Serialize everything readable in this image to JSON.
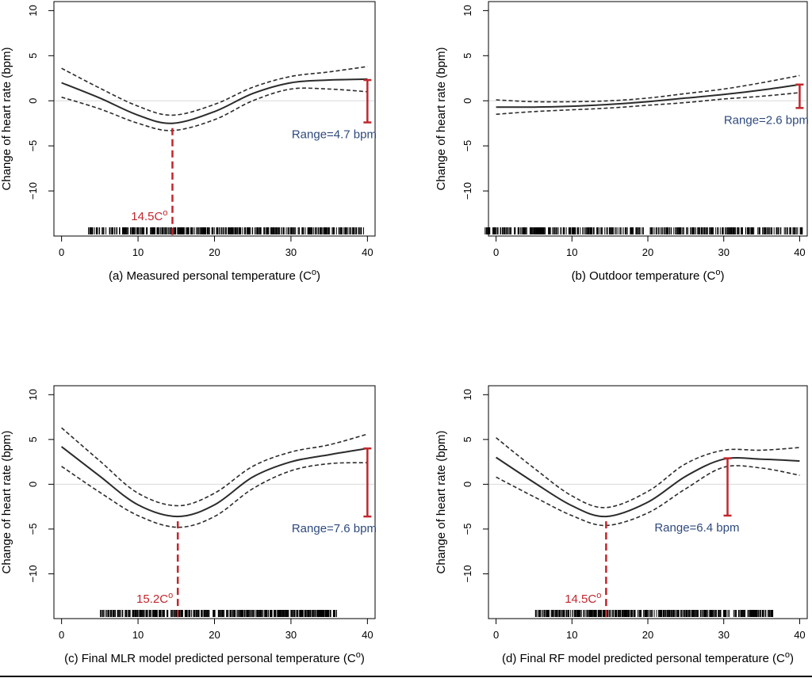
{
  "chart_data": [
    {
      "type": "line",
      "xlabel": "(a) Measured personal temperature (C",
      "xlabel_sup": "o",
      "xlabel_end": ")",
      "ylabel": "Change of heart rate (bpm)",
      "xlim": [
        -1,
        41
      ],
      "ylim": [
        -15,
        11
      ],
      "xticks": [
        0,
        10,
        20,
        30,
        40
      ],
      "yticks": [
        10,
        5,
        0,
        -5,
        -10
      ],
      "reference_line_y": 0,
      "series": [
        {
          "role": "estimate",
          "style": "solid",
          "x": [
            0,
            5,
            10,
            14.5,
            20,
            25,
            30,
            35,
            40
          ],
          "y": [
            2.0,
            0.3,
            -1.6,
            -2.5,
            -1.2,
            0.8,
            2.0,
            2.3,
            2.4
          ]
        },
        {
          "role": "upper",
          "style": "dashed",
          "x": [
            0,
            5,
            10,
            14.5,
            20,
            25,
            30,
            35,
            40
          ],
          "y": [
            3.6,
            1.4,
            -0.6,
            -1.6,
            -0.4,
            1.5,
            2.7,
            3.2,
            3.8
          ]
        },
        {
          "role": "lower",
          "style": "dashed",
          "x": [
            0,
            5,
            10,
            14.5,
            20,
            25,
            30,
            35,
            40
          ],
          "y": [
            0.4,
            -0.9,
            -2.5,
            -3.3,
            -2.1,
            0.0,
            1.3,
            1.3,
            1.0
          ]
        }
      ],
      "vline": {
        "x": 14.5,
        "label": "14.5C",
        "label_sup": "o"
      },
      "range_bar": {
        "x": 40,
        "from": -2.4,
        "to": 2.3,
        "label": "Range=4.7 bpm"
      },
      "rug": {
        "from": 3.5,
        "to": 39.5
      }
    },
    {
      "type": "line",
      "xlabel": "(b) Outdoor temperature (C",
      "xlabel_sup": "o",
      "xlabel_end": ")",
      "ylabel": "Change of heart rate (bpm)",
      "xlim": [
        -1,
        41
      ],
      "ylim": [
        -15,
        11
      ],
      "xticks": [
        0,
        10,
        20,
        30,
        40
      ],
      "yticks": [
        10,
        5,
        0,
        -5,
        -10
      ],
      "reference_line_y": 0,
      "series": [
        {
          "role": "estimate",
          "style": "solid",
          "x": [
            0,
            5,
            10,
            15,
            20,
            25,
            30,
            35,
            40
          ],
          "y": [
            -0.7,
            -0.7,
            -0.6,
            -0.4,
            -0.1,
            0.3,
            0.7,
            1.2,
            1.8
          ]
        },
        {
          "role": "upper",
          "style": "dashed",
          "x": [
            0,
            5,
            10,
            15,
            20,
            25,
            30,
            35,
            40
          ],
          "y": [
            0.1,
            -0.1,
            -0.1,
            0.0,
            0.3,
            0.8,
            1.3,
            2.0,
            2.8
          ]
        },
        {
          "role": "lower",
          "style": "dashed",
          "x": [
            0,
            5,
            10,
            15,
            20,
            25,
            30,
            35,
            40
          ],
          "y": [
            -1.5,
            -1.2,
            -1.0,
            -0.8,
            -0.5,
            -0.2,
            0.2,
            0.5,
            0.9
          ]
        }
      ],
      "vline": null,
      "range_bar": {
        "x": 40,
        "from": -0.8,
        "to": 1.8,
        "label": "Range=2.6 bpm"
      },
      "rug": {
        "from": -1.5,
        "to": 40.5
      }
    },
    {
      "type": "line",
      "xlabel": "(c) Final MLR model predicted personal temperature (C",
      "xlabel_sup": "o",
      "xlabel_end": ")",
      "ylabel": "Change of heart rate (bpm)",
      "xlim": [
        -1,
        41
      ],
      "ylim": [
        -15,
        11
      ],
      "xticks": [
        0,
        10,
        20,
        30,
        40
      ],
      "yticks": [
        10,
        5,
        0,
        -5,
        -10
      ],
      "reference_line_y": 0,
      "series": [
        {
          "role": "estimate",
          "style": "solid",
          "x": [
            0,
            5,
            10,
            15.2,
            20,
            25,
            30,
            35,
            40
          ],
          "y": [
            4.2,
            0.9,
            -2.3,
            -3.6,
            -2.3,
            0.8,
            2.5,
            3.3,
            4.0
          ]
        },
        {
          "role": "upper",
          "style": "dashed",
          "x": [
            0,
            5,
            10,
            15.2,
            20,
            25,
            30,
            35,
            40
          ],
          "y": [
            6.3,
            2.6,
            -1.0,
            -2.4,
            -1.0,
            2.0,
            3.6,
            4.4,
            5.6
          ]
        },
        {
          "role": "lower",
          "style": "dashed",
          "x": [
            0,
            5,
            10,
            15.2,
            20,
            25,
            30,
            35,
            40
          ],
          "y": [
            2.0,
            -0.9,
            -3.5,
            -4.8,
            -3.6,
            -0.5,
            1.5,
            2.3,
            2.4
          ]
        }
      ],
      "vline": {
        "x": 15.2,
        "label": "15.2C",
        "label_sup": "o"
      },
      "range_bar": {
        "x": 40,
        "from": -3.6,
        "to": 4.0,
        "label": "Range=7.6 bpm"
      },
      "rug": {
        "from": 5,
        "to": 36
      }
    },
    {
      "type": "line",
      "xlabel": "(d) Final RF model predicted personal temperature (C",
      "xlabel_sup": "o",
      "xlabel_end": ")",
      "ylabel": "Change of heart rate (bpm)",
      "xlim": [
        -1,
        41
      ],
      "ylim": [
        -15,
        11
      ],
      "xticks": [
        0,
        10,
        20,
        30,
        40
      ],
      "yticks": [
        10,
        5,
        0,
        -5,
        -10
      ],
      "reference_line_y": 0,
      "series": [
        {
          "role": "estimate",
          "style": "solid",
          "x": [
            0,
            5,
            10,
            14.5,
            20,
            25,
            30,
            35,
            40
          ],
          "y": [
            3.0,
            0.2,
            -2.4,
            -3.6,
            -2.0,
            0.9,
            2.8,
            2.8,
            2.6
          ]
        },
        {
          "role": "upper",
          "style": "dashed",
          "x": [
            0,
            5,
            10,
            14.5,
            20,
            25,
            30,
            35,
            40
          ],
          "y": [
            5.2,
            1.8,
            -1.3,
            -2.6,
            -0.8,
            2.3,
            3.8,
            3.8,
            4.1
          ]
        },
        {
          "role": "lower",
          "style": "dashed",
          "x": [
            0,
            5,
            10,
            14.5,
            20,
            25,
            30,
            35,
            40
          ],
          "y": [
            0.8,
            -1.4,
            -3.5,
            -4.6,
            -3.2,
            -0.5,
            1.9,
            1.8,
            1.0
          ]
        }
      ],
      "vline": {
        "x": 14.5,
        "label": "14.5C",
        "label_sup": "o"
      },
      "range_bar": {
        "x": 30.5,
        "from": -3.5,
        "to": 2.9,
        "label": "Range=6.4 bpm"
      },
      "rug": {
        "from": 5,
        "to": 36.5
      }
    }
  ],
  "colors": {
    "curve": "#2b2b2b",
    "highlight": "#c0272d",
    "label": "#2e4a7d",
    "reference": "#d9d9d9"
  }
}
